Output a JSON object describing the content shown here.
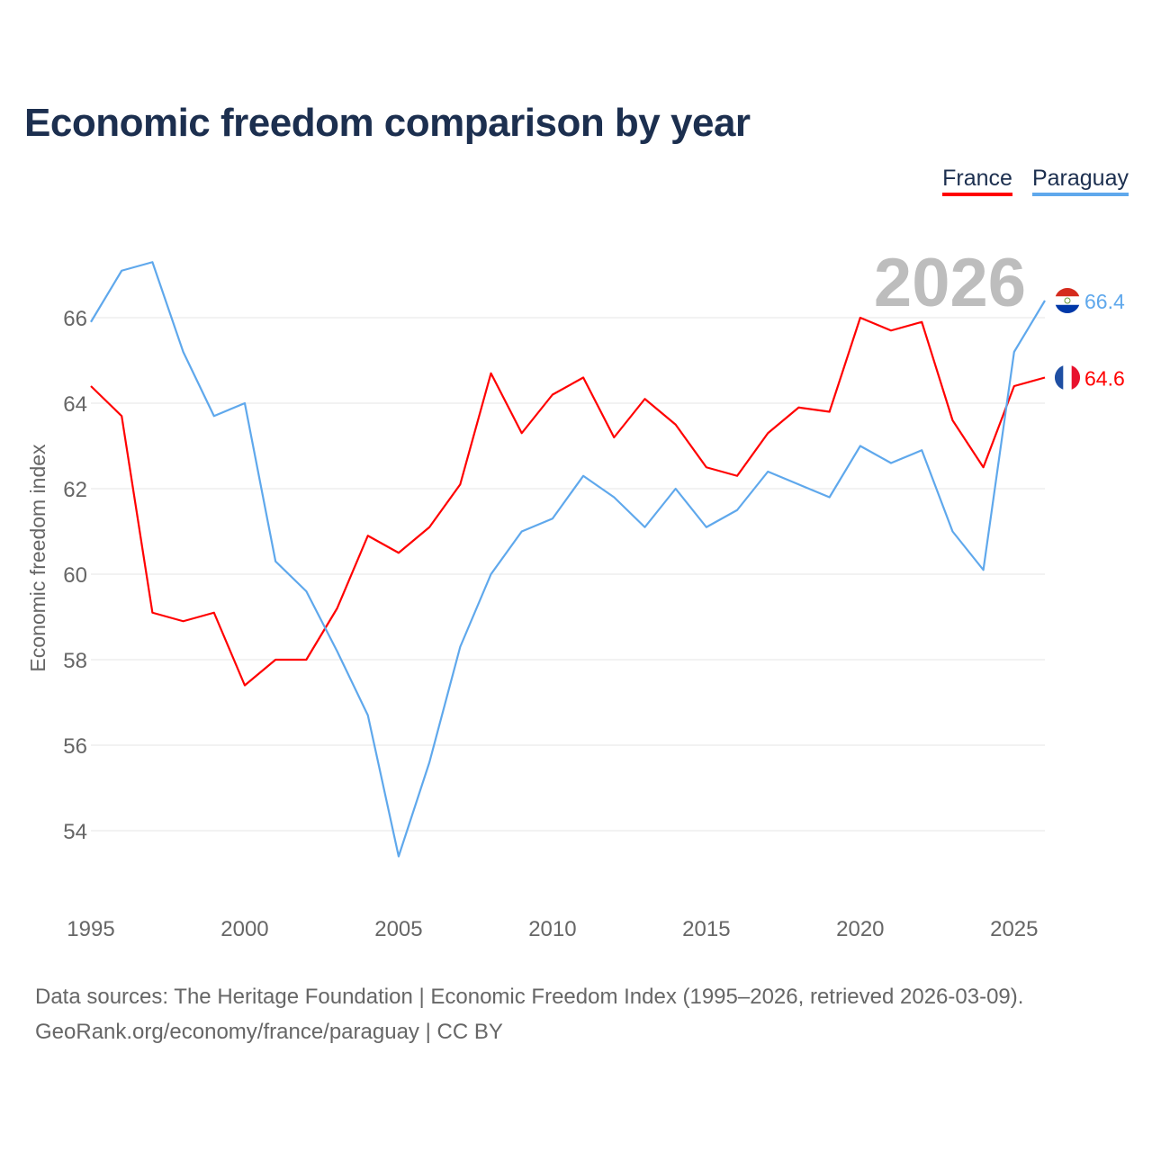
{
  "chart_data": {
    "type": "line",
    "title": "Economic freedom comparison by year",
    "xlabel": "",
    "ylabel": "Economic freedom index",
    "x": [
      1995,
      1996,
      1997,
      1998,
      1999,
      2000,
      2001,
      2002,
      2003,
      2004,
      2005,
      2006,
      2007,
      2008,
      2009,
      2010,
      2011,
      2012,
      2013,
      2014,
      2015,
      2016,
      2017,
      2018,
      2019,
      2020,
      2021,
      2022,
      2023,
      2024,
      2025,
      2026
    ],
    "xlim": [
      1995,
      2026
    ],
    "ylim": [
      52.5,
      68
    ],
    "xticks": [
      1995,
      2000,
      2005,
      2010,
      2015,
      2020,
      2025
    ],
    "yticks": [
      54,
      56,
      58,
      60,
      62,
      64,
      66
    ],
    "grid": true,
    "legend_position": "top-right",
    "current_year_label": "2026",
    "series": [
      {
        "name": "France",
        "color": "#ff0000",
        "end_label": "64.6",
        "values": [
          64.4,
          63.7,
          59.1,
          58.9,
          59.1,
          57.4,
          58.0,
          58.0,
          59.2,
          60.9,
          60.5,
          61.1,
          62.1,
          64.7,
          63.3,
          64.2,
          64.6,
          63.2,
          64.1,
          63.5,
          62.5,
          62.3,
          63.3,
          63.9,
          63.8,
          66.0,
          65.7,
          65.9,
          63.6,
          62.5,
          64.4,
          64.6
        ]
      },
      {
        "name": "Paraguay",
        "color": "#5fa8ec",
        "end_label": "66.4",
        "values": [
          65.9,
          67.1,
          67.3,
          65.2,
          63.7,
          64.0,
          60.3,
          59.6,
          58.2,
          56.7,
          53.4,
          55.6,
          58.3,
          60.0,
          61.0,
          61.3,
          62.3,
          61.8,
          61.1,
          62.0,
          61.1,
          61.5,
          62.4,
          62.1,
          61.8,
          63.0,
          62.6,
          62.9,
          61.0,
          60.1,
          65.2,
          66.4
        ]
      }
    ]
  },
  "footer": {
    "line1": "Data sources: The Heritage Foundation | Economic Freedom Index (1995–2026, retrieved 2026-03-09).",
    "line2": "GeoRank.org/economy/france/paraguay | CC BY"
  }
}
